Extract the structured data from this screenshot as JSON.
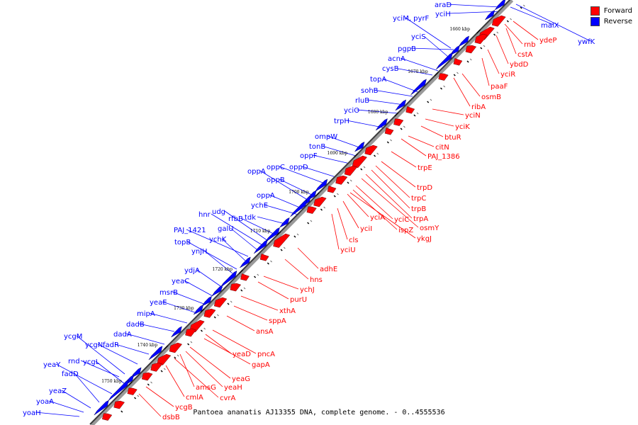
{
  "legend": {
    "forward_label": "Forward",
    "reverse_label": "Reverse",
    "forward_color": "#ff0000",
    "reverse_color": "#0000ff"
  },
  "caption": "Pantoea ananatis AJ13355 DNA, complete genome. - 0..4555536",
  "ticks": [
    "1660 kbp",
    "1670 kbp",
    "1680 kbp",
    "1690 kbp",
    "1700 kbp",
    "1710 kbp",
    "1720 kbp",
    "1730 kbp",
    "1740 kbp",
    "1750 kbp"
  ],
  "reverse_genes": [
    "araD",
    "yciH",
    "yciM, pyrF",
    "yciS",
    "pgpB",
    "acnA",
    "cysB",
    "topA",
    "sohB",
    "rluB",
    "yciO",
    "trpH",
    "ompW",
    "tonB",
    "oppF",
    "oppD",
    "oppC",
    "oppB",
    "oppA",
    "oppA",
    "ychE",
    "tdk",
    "rfbB",
    "udg",
    "hnr",
    "galU",
    "PAJ_1421",
    "ychK",
    "topB",
    "ynjH",
    "ydjA",
    "yeaC",
    "msrB",
    "yeaE",
    "mipA",
    "dadB",
    "dadA",
    "fadR",
    "ycgN",
    "ycgM",
    "rnd",
    "ycgL",
    "yeaY",
    "fadD",
    "yeaZ",
    "yoaA",
    "yoaH",
    "malX",
    "ywfK"
  ],
  "forward_genes": [
    "rnb",
    "cstA",
    "ydeP",
    "ybdD",
    "yciR",
    "paaF",
    "osmB",
    "ribA",
    "yciN",
    "yciK",
    "btuR",
    "citN",
    "PAJ_1386",
    "trpE",
    "trpD",
    "trpC",
    "trpB",
    "trpA",
    "osmY",
    "yciC",
    "ispZ",
    "ykgJ",
    "yciA",
    "yciI",
    "cls",
    "yciU",
    "adhE",
    "hns",
    "ychJ",
    "purU",
    "xthA",
    "sppA",
    "ansA",
    "pncA",
    "yeaD",
    "gapA",
    "yeaG",
    "yeaH",
    "amsG",
    "cvrA",
    "cmlA",
    "ycgB",
    "dsbB"
  ]
}
